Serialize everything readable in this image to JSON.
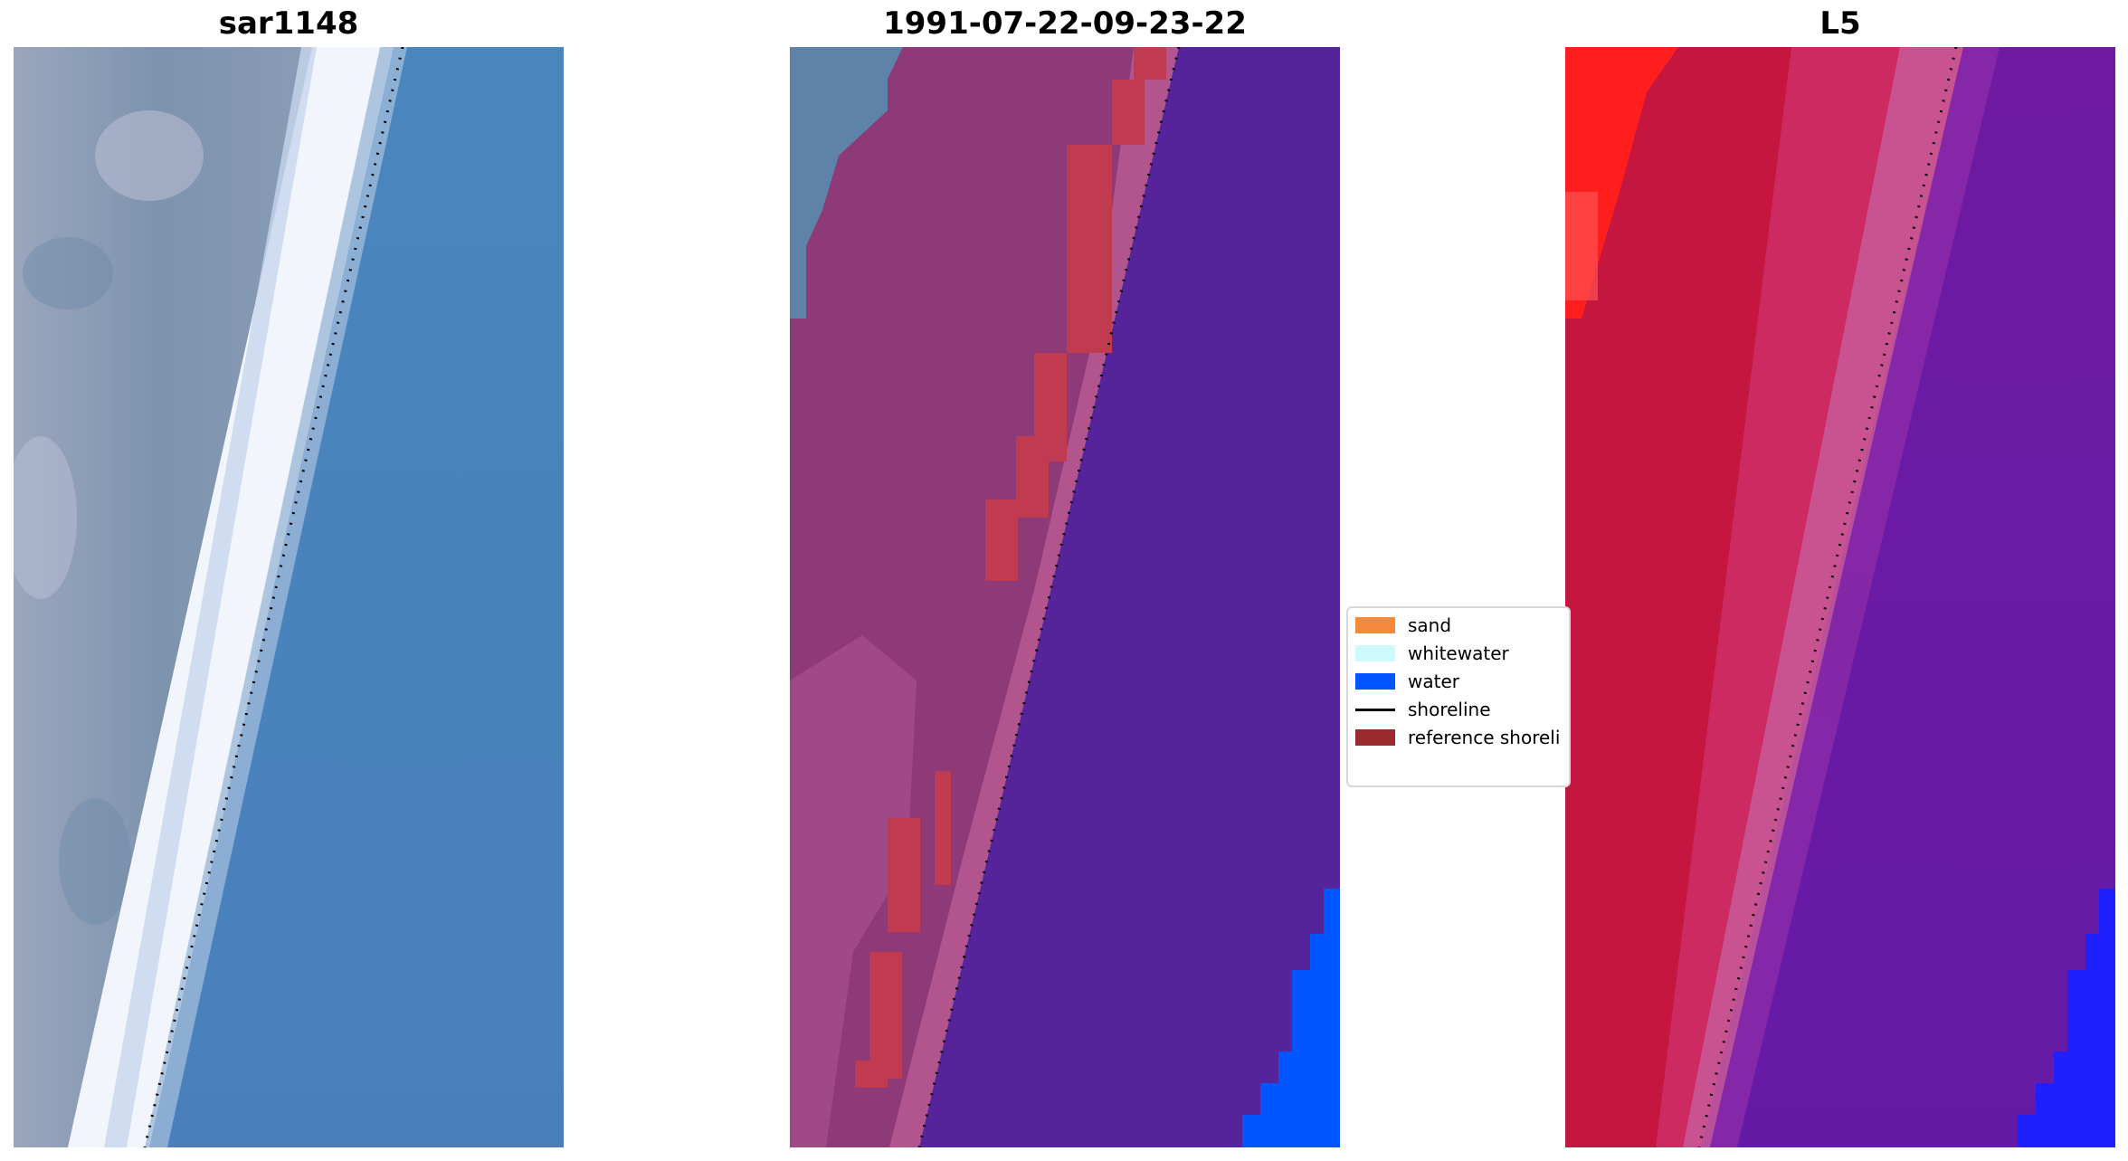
{
  "panels": [
    {
      "title": "sar1148"
    },
    {
      "title": "1991-07-22-09-23-22"
    },
    {
      "title": "L5"
    }
  ],
  "legend": {
    "items": [
      {
        "label": "sand",
        "color": "#f58a3c",
        "kind": "patch"
      },
      {
        "label": "whitewater",
        "color": "#ccfafa",
        "kind": "patch"
      },
      {
        "label": "water",
        "color": "#0055ff",
        "kind": "patch"
      },
      {
        "label": "shoreline",
        "color": "#000000",
        "kind": "line"
      },
      {
        "label": "reference shoreli",
        "color": "#9b2a30",
        "kind": "patch"
      }
    ]
  },
  "colors": {
    "rgb_water": "#4a86bd",
    "rgb_beach": "#f2f5fb",
    "rgb_land": "#7f93ad",
    "class_land": "#8e3a78",
    "class_sand_overlay": "#c03a50",
    "class_sea": "#55249a",
    "class_water": "#0055ff",
    "index_land": "#c4163e",
    "index_bright": "#ff1e1e",
    "index_sea": "#6a1aa0",
    "index_blue": "#1a1aff"
  }
}
